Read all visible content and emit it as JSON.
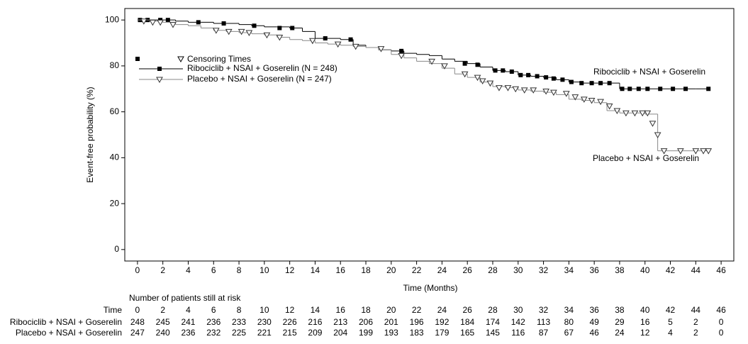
{
  "chart_data": {
    "type": "step",
    "x_label": "Time (Months)",
    "y_label": "Event-free probability (%)",
    "xlim": [
      -1,
      47
    ],
    "ylim": [
      -5,
      105
    ],
    "xticks": [
      0,
      2,
      4,
      6,
      8,
      10,
      12,
      14,
      16,
      18,
      20,
      22,
      24,
      26,
      28,
      30,
      32,
      34,
      36,
      38,
      40,
      42,
      44,
      46
    ],
    "yticks": [
      0,
      20,
      40,
      60,
      80,
      100
    ],
    "censor_legend": "Censoring Times",
    "series": [
      {
        "name": "Ribociclib + NSAI + Goserelin (N = 248)",
        "color": "#000000",
        "marker": "square",
        "x": [
          0,
          1,
          2,
          3,
          4,
          5,
          6,
          7,
          8,
          9,
          10,
          11,
          12,
          13,
          14,
          15,
          16,
          17,
          18,
          19,
          20,
          21,
          22,
          23,
          24,
          25,
          26,
          27,
          28,
          29,
          30,
          31,
          32,
          33,
          34,
          35,
          36,
          37,
          38,
          39,
          40,
          41,
          42,
          43,
          44,
          45
        ],
        "values": [
          100,
          100,
          100,
          99.5,
          99,
          99,
          98.5,
          98.5,
          98,
          97.5,
          97,
          97,
          96.5,
          95,
          92,
          92,
          91.5,
          89,
          88,
          87,
          86.5,
          85.5,
          85,
          84.5,
          83,
          82,
          81,
          79.5,
          78,
          77.5,
          76,
          75.5,
          75,
          74,
          73,
          72.5,
          72.5,
          72.5,
          70,
          70,
          70,
          70,
          70,
          70,
          70,
          70
        ],
        "censor_x": [
          0.2,
          0.8,
          1.8,
          2.4,
          4.8,
          6.8,
          9.2,
          11.2,
          12.2,
          14.8,
          16.8,
          20.8,
          25.8,
          26.8,
          28.2,
          28.8,
          29.5,
          30.2,
          30.8,
          31.5,
          32.2,
          32.8,
          33.5,
          34.2,
          35,
          35.8,
          36.5,
          37.2,
          38.2,
          38.8,
          39.5,
          40.2,
          41.2,
          42.2,
          43.2,
          45
        ],
        "censor_y": [
          100,
          100,
          100,
          100,
          99,
          98.5,
          97.5,
          96.5,
          96.5,
          92,
          91.5,
          86.5,
          81,
          80.5,
          78,
          78,
          77.5,
          76,
          76,
          75.5,
          75,
          74.5,
          74,
          73,
          72.5,
          72.5,
          72.5,
          72.5,
          70,
          70,
          70,
          70,
          70,
          70,
          70,
          70
        ]
      },
      {
        "name": "Placebo + NSAI + Goserelin (N = 247)",
        "color": "#888888",
        "marker": "triangle",
        "x": [
          0,
          1,
          2,
          3,
          4,
          5,
          6,
          7,
          8,
          9,
          10,
          11,
          12,
          13,
          14,
          15,
          16,
          17,
          18,
          19,
          20,
          21,
          22,
          23,
          24,
          25,
          26,
          27,
          28,
          29,
          30,
          31,
          32,
          33,
          34,
          35,
          36,
          37,
          38,
          39,
          40,
          41,
          42,
          43,
          44,
          45
        ],
        "values": [
          100,
          99.5,
          99,
          98,
          97.5,
          96.5,
          95.5,
          95,
          94.5,
          94,
          93.5,
          92.5,
          91.5,
          91,
          90,
          89.5,
          89,
          88.5,
          88,
          87,
          85,
          83.5,
          82,
          81,
          79,
          76.5,
          75,
          73,
          71,
          70.5,
          69.5,
          69,
          68.5,
          67.5,
          65.5,
          65,
          64,
          60.5,
          59.5,
          59.5,
          59,
          43,
          43,
          43,
          43,
          43
        ],
        "censor_x": [
          0.5,
          1.2,
          1.8,
          2.8,
          6.2,
          7.2,
          8.2,
          8.8,
          10.2,
          11.2,
          13.8,
          15.8,
          17.2,
          19.2,
          20.8,
          23.2,
          24.2,
          25.8,
          26.8,
          27.2,
          27.8,
          28.5,
          29.2,
          29.8,
          30.5,
          31.2,
          32.2,
          32.8,
          33.8,
          34.5,
          35.2,
          35.8,
          36.5,
          37.2,
          37.8,
          38.5,
          39.2,
          39.8,
          40.2,
          40.6,
          41,
          41.5,
          42.8,
          44,
          44.6,
          45
        ],
        "censor_y": [
          99.5,
          99,
          99,
          98,
          95.5,
          95,
          95,
          94.5,
          93.5,
          92.5,
          91,
          89.5,
          88.5,
          87.5,
          84.5,
          82,
          80,
          76.5,
          75,
          73.5,
          72.5,
          70.5,
          70.5,
          70,
          69.5,
          69.5,
          69,
          68.5,
          68,
          66.5,
          65.5,
          65,
          64.5,
          62.5,
          60.5,
          59.5,
          59.5,
          59.5,
          59.5,
          55,
          50,
          43,
          43,
          43,
          43,
          43
        ]
      }
    ],
    "annotations": [
      "Ribociclib + NSAI + Goserelin",
      "Placebo + NSAI + Goserelin"
    ],
    "risk_table": {
      "title": "Number of patients still at risk",
      "time_label": "Time",
      "times": [
        0,
        2,
        4,
        6,
        8,
        10,
        12,
        14,
        16,
        18,
        20,
        22,
        24,
        26,
        28,
        30,
        32,
        34,
        36,
        38,
        40,
        42,
        44,
        46
      ],
      "rows": [
        {
          "label": "Ribociclib + NSAI + Goserelin",
          "counts": [
            248,
            245,
            241,
            236,
            233,
            230,
            226,
            216,
            213,
            206,
            201,
            196,
            192,
            184,
            174,
            142,
            113,
            80,
            49,
            29,
            16,
            5,
            2,
            0
          ]
        },
        {
          "label": "Placebo + NSAI + Goserelin",
          "counts": [
            247,
            240,
            236,
            232,
            225,
            221,
            215,
            209,
            204,
            199,
            193,
            183,
            179,
            165,
            145,
            116,
            87,
            67,
            46,
            24,
            12,
            4,
            2,
            0
          ]
        }
      ]
    }
  }
}
